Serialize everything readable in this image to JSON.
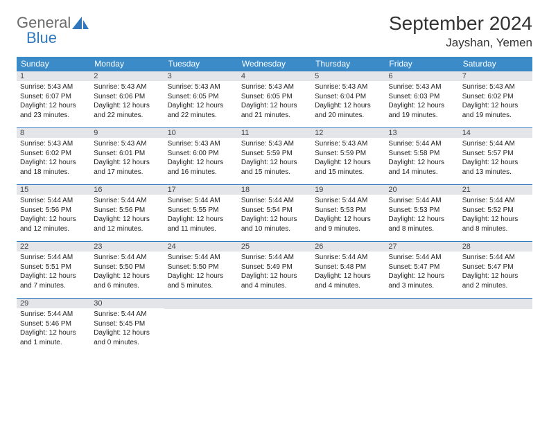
{
  "logo": {
    "word1": "General",
    "word2": "Blue"
  },
  "title": "September 2024",
  "location": "Jayshan, Yemen",
  "header_bg": "#3b8bc9",
  "daynum_bg": "#e3e5e8",
  "border_color": "#2f78bd",
  "weekdays": [
    "Sunday",
    "Monday",
    "Tuesday",
    "Wednesday",
    "Thursday",
    "Friday",
    "Saturday"
  ],
  "weeks": [
    [
      {
        "n": "1",
        "sr": "Sunrise: 5:43 AM",
        "ss": "Sunset: 6:07 PM",
        "d1": "Daylight: 12 hours",
        "d2": "and 23 minutes."
      },
      {
        "n": "2",
        "sr": "Sunrise: 5:43 AM",
        "ss": "Sunset: 6:06 PM",
        "d1": "Daylight: 12 hours",
        "d2": "and 22 minutes."
      },
      {
        "n": "3",
        "sr": "Sunrise: 5:43 AM",
        "ss": "Sunset: 6:05 PM",
        "d1": "Daylight: 12 hours",
        "d2": "and 22 minutes."
      },
      {
        "n": "4",
        "sr": "Sunrise: 5:43 AM",
        "ss": "Sunset: 6:05 PM",
        "d1": "Daylight: 12 hours",
        "d2": "and 21 minutes."
      },
      {
        "n": "5",
        "sr": "Sunrise: 5:43 AM",
        "ss": "Sunset: 6:04 PM",
        "d1": "Daylight: 12 hours",
        "d2": "and 20 minutes."
      },
      {
        "n": "6",
        "sr": "Sunrise: 5:43 AM",
        "ss": "Sunset: 6:03 PM",
        "d1": "Daylight: 12 hours",
        "d2": "and 19 minutes."
      },
      {
        "n": "7",
        "sr": "Sunrise: 5:43 AM",
        "ss": "Sunset: 6:02 PM",
        "d1": "Daylight: 12 hours",
        "d2": "and 19 minutes."
      }
    ],
    [
      {
        "n": "8",
        "sr": "Sunrise: 5:43 AM",
        "ss": "Sunset: 6:02 PM",
        "d1": "Daylight: 12 hours",
        "d2": "and 18 minutes."
      },
      {
        "n": "9",
        "sr": "Sunrise: 5:43 AM",
        "ss": "Sunset: 6:01 PM",
        "d1": "Daylight: 12 hours",
        "d2": "and 17 minutes."
      },
      {
        "n": "10",
        "sr": "Sunrise: 5:43 AM",
        "ss": "Sunset: 6:00 PM",
        "d1": "Daylight: 12 hours",
        "d2": "and 16 minutes."
      },
      {
        "n": "11",
        "sr": "Sunrise: 5:43 AM",
        "ss": "Sunset: 5:59 PM",
        "d1": "Daylight: 12 hours",
        "d2": "and 15 minutes."
      },
      {
        "n": "12",
        "sr": "Sunrise: 5:43 AM",
        "ss": "Sunset: 5:59 PM",
        "d1": "Daylight: 12 hours",
        "d2": "and 15 minutes."
      },
      {
        "n": "13",
        "sr": "Sunrise: 5:44 AM",
        "ss": "Sunset: 5:58 PM",
        "d1": "Daylight: 12 hours",
        "d2": "and 14 minutes."
      },
      {
        "n": "14",
        "sr": "Sunrise: 5:44 AM",
        "ss": "Sunset: 5:57 PM",
        "d1": "Daylight: 12 hours",
        "d2": "and 13 minutes."
      }
    ],
    [
      {
        "n": "15",
        "sr": "Sunrise: 5:44 AM",
        "ss": "Sunset: 5:56 PM",
        "d1": "Daylight: 12 hours",
        "d2": "and 12 minutes."
      },
      {
        "n": "16",
        "sr": "Sunrise: 5:44 AM",
        "ss": "Sunset: 5:56 PM",
        "d1": "Daylight: 12 hours",
        "d2": "and 12 minutes."
      },
      {
        "n": "17",
        "sr": "Sunrise: 5:44 AM",
        "ss": "Sunset: 5:55 PM",
        "d1": "Daylight: 12 hours",
        "d2": "and 11 minutes."
      },
      {
        "n": "18",
        "sr": "Sunrise: 5:44 AM",
        "ss": "Sunset: 5:54 PM",
        "d1": "Daylight: 12 hours",
        "d2": "and 10 minutes."
      },
      {
        "n": "19",
        "sr": "Sunrise: 5:44 AM",
        "ss": "Sunset: 5:53 PM",
        "d1": "Daylight: 12 hours",
        "d2": "and 9 minutes."
      },
      {
        "n": "20",
        "sr": "Sunrise: 5:44 AM",
        "ss": "Sunset: 5:53 PM",
        "d1": "Daylight: 12 hours",
        "d2": "and 8 minutes."
      },
      {
        "n": "21",
        "sr": "Sunrise: 5:44 AM",
        "ss": "Sunset: 5:52 PM",
        "d1": "Daylight: 12 hours",
        "d2": "and 8 minutes."
      }
    ],
    [
      {
        "n": "22",
        "sr": "Sunrise: 5:44 AM",
        "ss": "Sunset: 5:51 PM",
        "d1": "Daylight: 12 hours",
        "d2": "and 7 minutes."
      },
      {
        "n": "23",
        "sr": "Sunrise: 5:44 AM",
        "ss": "Sunset: 5:50 PM",
        "d1": "Daylight: 12 hours",
        "d2": "and 6 minutes."
      },
      {
        "n": "24",
        "sr": "Sunrise: 5:44 AM",
        "ss": "Sunset: 5:50 PM",
        "d1": "Daylight: 12 hours",
        "d2": "and 5 minutes."
      },
      {
        "n": "25",
        "sr": "Sunrise: 5:44 AM",
        "ss": "Sunset: 5:49 PM",
        "d1": "Daylight: 12 hours",
        "d2": "and 4 minutes."
      },
      {
        "n": "26",
        "sr": "Sunrise: 5:44 AM",
        "ss": "Sunset: 5:48 PM",
        "d1": "Daylight: 12 hours",
        "d2": "and 4 minutes."
      },
      {
        "n": "27",
        "sr": "Sunrise: 5:44 AM",
        "ss": "Sunset: 5:47 PM",
        "d1": "Daylight: 12 hours",
        "d2": "and 3 minutes."
      },
      {
        "n": "28",
        "sr": "Sunrise: 5:44 AM",
        "ss": "Sunset: 5:47 PM",
        "d1": "Daylight: 12 hours",
        "d2": "and 2 minutes."
      }
    ],
    [
      {
        "n": "29",
        "sr": "Sunrise: 5:44 AM",
        "ss": "Sunset: 5:46 PM",
        "d1": "Daylight: 12 hours",
        "d2": "and 1 minute."
      },
      {
        "n": "30",
        "sr": "Sunrise: 5:44 AM",
        "ss": "Sunset: 5:45 PM",
        "d1": "Daylight: 12 hours",
        "d2": "and 0 minutes."
      },
      null,
      null,
      null,
      null,
      null
    ]
  ]
}
